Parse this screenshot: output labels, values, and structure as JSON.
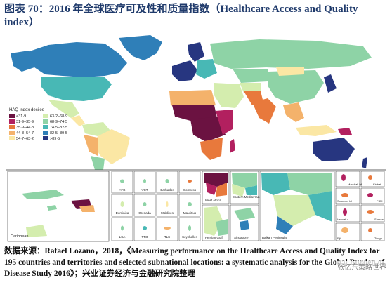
{
  "figure": {
    "title": "图表 70：2016 年全球医疗可及性和质量指数（Healthcare Access and Quality index）",
    "source": "数据来源：Rafael Lozano，2018，《Measuring performance on the Healthcare Access and Quality Index for 195 countries and territories and selected subnational locations: a systematic analysis for the Global Burden of Disease Study 2016》；兴业证券经济与金融研究院整理",
    "watermark": "张忆东策略世界"
  },
  "legend": {
    "title": "HAQ Index deciles",
    "items": [
      {
        "label": "<31·9",
        "color": "#6b1241"
      },
      {
        "label": "31·9–35·9",
        "color": "#b2205f"
      },
      {
        "label": "35·9–44·8",
        "color": "#e8793c"
      },
      {
        "label": "44·8–54·7",
        "color": "#f4b26b"
      },
      {
        "label": "54·7–63·2",
        "color": "#fbe7a4"
      },
      {
        "label": "63·2–68·9",
        "color": "#d4edae"
      },
      {
        "label": "68·9–74·5",
        "color": "#8ed3a6"
      },
      {
        "label": "74·5–82·5",
        "color": "#48b8b5"
      },
      {
        "label": "82·5–89·5",
        "color": "#2f7fb8"
      },
      {
        "label": ">89·5",
        "color": "#273680"
      }
    ]
  },
  "insets": {
    "caribbean": "Caribbean",
    "small": [
      "ATG",
      "VCT",
      "Barbados",
      "Comoros",
      "Dominica",
      "Grenada",
      "Maldives",
      "Mauritius",
      "LCA",
      "TTO",
      "TLS",
      "Seychelles"
    ],
    "regions": [
      "West Africa",
      "Eastern Mediterranean",
      "Persian Gulf",
      "Singapore",
      "Balkan Peninsula"
    ],
    "pacific": [
      "Marshall Isl",
      "Kiribati",
      "Solomon Isl",
      "FSM",
      "Vanuatu",
      "Samoa",
      "Fiji",
      "Tonga"
    ]
  }
}
